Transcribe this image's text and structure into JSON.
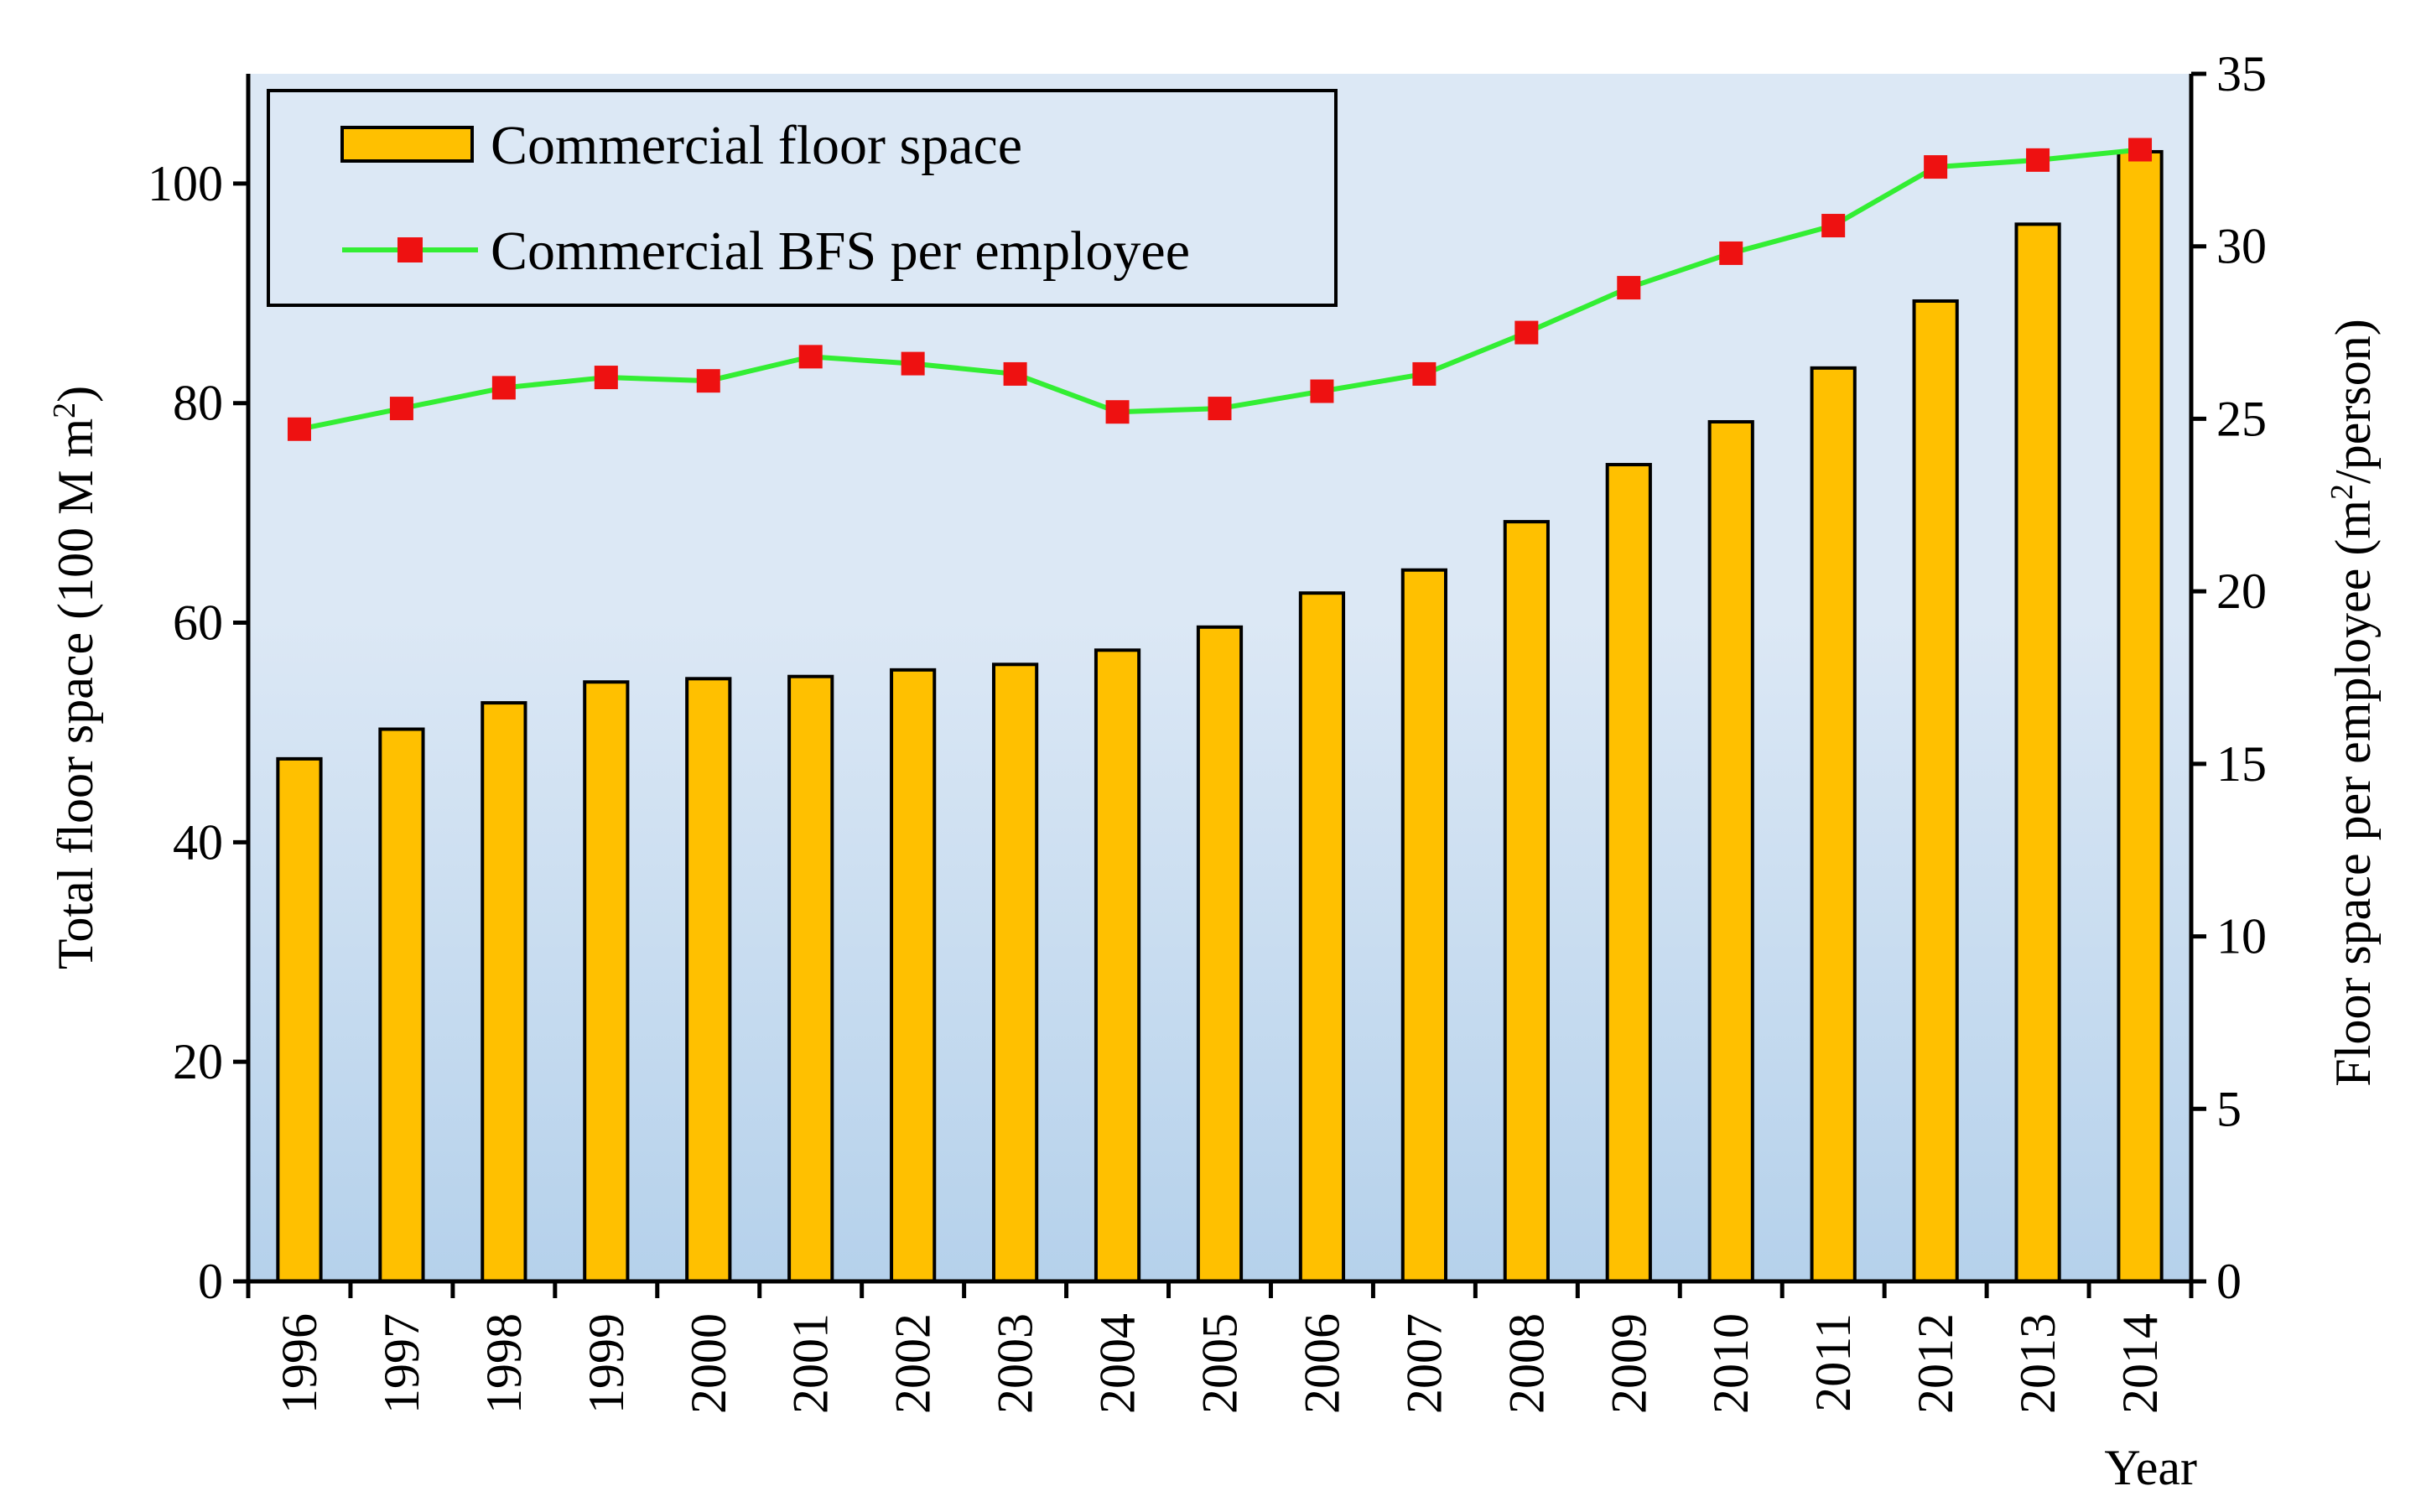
{
  "chart_data": {
    "type": "bar",
    "categories": [
      "1996",
      "1997",
      "1998",
      "1999",
      "2000",
      "2001",
      "2002",
      "2003",
      "2004",
      "2005",
      "2006",
      "2007",
      "2008",
      "2009",
      "2010",
      "2011",
      "2012",
      "2013",
      "2014"
    ],
    "series": [
      {
        "name": "Commercial floor space",
        "type": "bar",
        "axis": "left",
        "color": "#FFC000",
        "values": [
          47.6,
          50.3,
          52.7,
          54.6,
          54.9,
          55.1,
          55.7,
          56.2,
          57.5,
          59.6,
          62.7,
          64.8,
          69.2,
          74.4,
          78.3,
          83.2,
          89.3,
          96.3,
          102.9
        ]
      },
      {
        "name": "Commercial BFS per employee",
        "type": "line",
        "axis": "right",
        "line_color": "#33EE33",
        "marker_color": "#EE1111",
        "values": [
          24.7,
          25.3,
          25.9,
          26.2,
          26.1,
          26.8,
          26.6,
          26.3,
          25.2,
          25.3,
          25.8,
          26.3,
          27.5,
          28.8,
          29.8,
          30.6,
          32.3,
          32.5,
          32.8
        ]
      }
    ],
    "y_left": {
      "label_prefix": "Total floor space (100 M m",
      "label_sup": "2",
      "label_suffix": ")",
      "ylim": [
        0,
        110
      ],
      "ticks": [
        "0",
        "20",
        "40",
        "60",
        "80",
        "100"
      ]
    },
    "y_right": {
      "label_prefix": "Floor space per employee (m",
      "label_sup": "2",
      "label_suffix": "/person)",
      "ylim": [
        0,
        35
      ],
      "ticks": [
        "0",
        "5",
        "10",
        "15",
        "20",
        "25",
        "30",
        "35"
      ]
    },
    "xlabel": "Year",
    "legend": {
      "position": "top-left",
      "items": [
        "Commercial floor space",
        "Commercial BFS per employee"
      ]
    },
    "background": {
      "gradient_top": "#DCE8F5",
      "gradient_bottom": "#B5D1EB"
    }
  }
}
